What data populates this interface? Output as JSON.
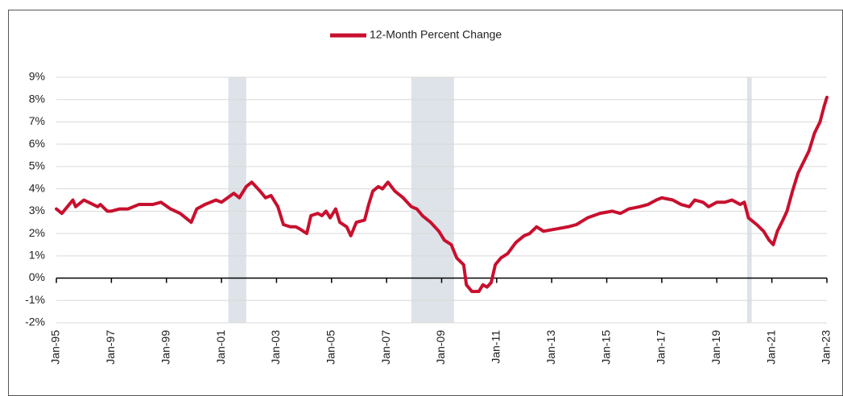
{
  "chart_data": {
    "type": "line",
    "series": [
      {
        "name": "12-Month Percent Change",
        "color": "#c8102e",
        "x": [
          1995.0,
          1995.2,
          1995.6,
          1995.7,
          1996.0,
          1996.5,
          1996.6,
          1996.85,
          1997.0,
          1997.3,
          1997.6,
          1998.0,
          1998.5,
          1998.8,
          1999.15,
          1999.5,
          1999.9,
          2000.1,
          2000.4,
          2000.8,
          2001.0,
          2001.45,
          2001.65,
          2001.9,
          2002.1,
          2002.4,
          2002.6,
          2002.8,
          2003.05,
          2003.25,
          2003.5,
          2003.7,
          2003.85,
          2004.1,
          2004.25,
          2004.5,
          2004.65,
          2004.8,
          2004.95,
          2005.15,
          2005.3,
          2005.55,
          2005.7,
          2005.9,
          2006.2,
          2006.35,
          2006.5,
          2006.7,
          2006.85,
          2007.05,
          2007.3,
          2007.6,
          2007.9,
          2008.1,
          2008.3,
          2008.6,
          2008.9,
          2009.1,
          2009.35,
          2009.55,
          2009.8,
          2009.9,
          2010.1,
          2010.35,
          2010.5,
          2010.65,
          2010.8,
          2010.95,
          2011.15,
          2011.4,
          2011.7,
          2012.0,
          2012.2,
          2012.45,
          2012.7,
          2013.15,
          2013.6,
          2013.9,
          2014.3,
          2014.75,
          2015.2,
          2015.5,
          2015.8,
          2016.2,
          2016.5,
          2016.8,
          2017.0,
          2017.4,
          2017.7,
          2018.0,
          2018.2,
          2018.5,
          2018.7,
          2019.0,
          2019.3,
          2019.55,
          2019.85,
          2020.0,
          2020.15,
          2020.45,
          2020.7,
          2020.9,
          2021.05,
          2021.2,
          2021.4,
          2021.55,
          2021.75,
          2021.95,
          2022.15,
          2022.35,
          2022.55,
          2022.75,
          2022.9,
          2023.0
        ],
        "values": [
          3.1,
          2.9,
          3.5,
          3.2,
          3.5,
          3.2,
          3.3,
          3.0,
          3.0,
          3.1,
          3.1,
          3.3,
          3.3,
          3.4,
          3.1,
          2.9,
          2.5,
          3.1,
          3.3,
          3.5,
          3.4,
          3.8,
          3.6,
          4.1,
          4.3,
          3.9,
          3.6,
          3.7,
          3.2,
          2.4,
          2.3,
          2.3,
          2.2,
          2.0,
          2.8,
          2.9,
          2.8,
          3.0,
          2.7,
          3.1,
          2.5,
          2.3,
          1.9,
          2.5,
          2.6,
          3.3,
          3.9,
          4.1,
          4.0,
          4.3,
          3.9,
          3.6,
          3.2,
          3.1,
          2.8,
          2.5,
          2.1,
          1.7,
          1.5,
          0.9,
          0.6,
          -0.3,
          -0.6,
          -0.6,
          -0.3,
          -0.4,
          -0.2,
          0.6,
          0.9,
          1.1,
          1.6,
          1.9,
          2.0,
          2.3,
          2.1,
          2.2,
          2.3,
          2.4,
          2.7,
          2.9,
          3.0,
          2.9,
          3.1,
          3.2,
          3.3,
          3.5,
          3.6,
          3.5,
          3.3,
          3.2,
          3.5,
          3.4,
          3.2,
          3.4,
          3.4,
          3.5,
          3.3,
          3.4,
          2.7,
          2.4,
          2.1,
          1.7,
          1.5,
          2.1,
          2.6,
          3.0,
          3.9,
          4.7,
          5.2,
          5.7,
          6.5,
          7.0,
          7.7,
          8.1
        ]
      }
    ],
    "shaded_regions": [
      [
        2001.25,
        2001.9
      ],
      [
        2007.9,
        2009.45
      ],
      [
        2020.1,
        2020.27
      ]
    ],
    "xlim": [
      1995,
      2023
    ],
    "xticks": [
      {
        "value": 1995,
        "label": "Jan-95"
      },
      {
        "value": 1997,
        "label": "Jan-97"
      },
      {
        "value": 1999,
        "label": "Jan-99"
      },
      {
        "value": 2001,
        "label": "Jan-01"
      },
      {
        "value": 2003,
        "label": "Jan-03"
      },
      {
        "value": 2005,
        "label": "Jan-05"
      },
      {
        "value": 2007,
        "label": "Jan-07"
      },
      {
        "value": 2009,
        "label": "Jan-09"
      },
      {
        "value": 2011,
        "label": "Jan-11"
      },
      {
        "value": 2013,
        "label": "Jan-13"
      },
      {
        "value": 2015,
        "label": "Jan-15"
      },
      {
        "value": 2017,
        "label": "Jan-17"
      },
      {
        "value": 2019,
        "label": "Jan-19"
      },
      {
        "value": 2021,
        "label": "Jan-21"
      },
      {
        "value": 2023,
        "label": "Jan-23"
      }
    ],
    "ylim": [
      -2,
      9
    ],
    "yticks": [
      {
        "value": -2,
        "label": "-2%"
      },
      {
        "value": -1,
        "label": "-1%"
      },
      {
        "value": 0,
        "label": "0%"
      },
      {
        "value": 1,
        "label": "1%"
      },
      {
        "value": 2,
        "label": "2%"
      },
      {
        "value": 3,
        "label": "3%"
      },
      {
        "value": 4,
        "label": "4%"
      },
      {
        "value": 5,
        "label": "5%"
      },
      {
        "value": 6,
        "label": "6%"
      },
      {
        "value": 7,
        "label": "7%"
      },
      {
        "value": 8,
        "label": "8%"
      },
      {
        "value": 9,
        "label": "9%"
      }
    ],
    "grid": true
  }
}
